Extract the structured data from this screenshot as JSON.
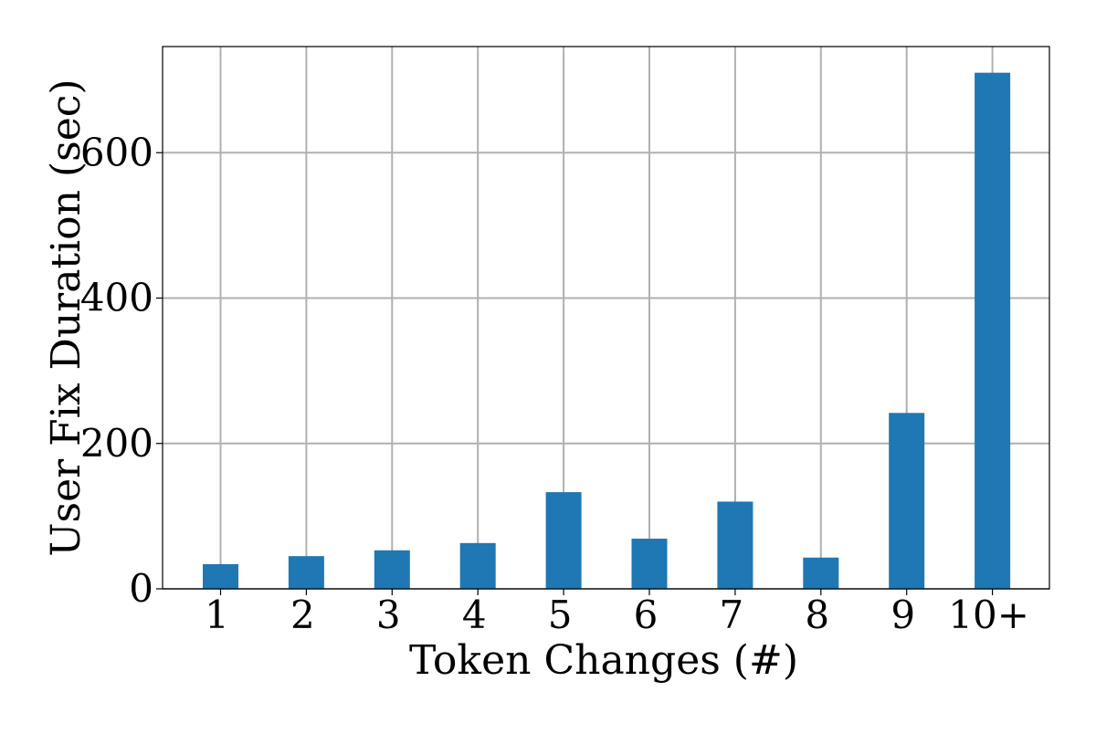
{
  "chart_data": {
    "type": "bar",
    "categories": [
      "1",
      "2",
      "3",
      "4",
      "5",
      "6",
      "7",
      "8",
      "9",
      "10+"
    ],
    "values": [
      34,
      45,
      53,
      63,
      133,
      69,
      120,
      43,
      242,
      710
    ],
    "title": "",
    "xlabel": "Token Changes (#)",
    "ylabel": "User Fix Duration (sec)",
    "ylim": [
      0,
      746
    ],
    "yticks": [
      0,
      200,
      400,
      600
    ],
    "grid": true,
    "legend": "none",
    "colors": {
      "bar": "#1f77b4",
      "grid": "#b0b0b0",
      "axis": "#000000"
    }
  }
}
